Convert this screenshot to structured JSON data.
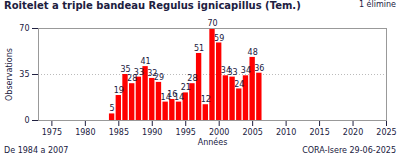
{
  "chart_data": {
    "type": "bar",
    "title": "Roitelet a triple bandeau  Regulus ignicapillus (Tem.)",
    "annotations": [
      "1 élimine"
    ],
    "subtitle": "De 1984 a 2007",
    "caption": "CORA-Isere 29-06-2025",
    "x_label": "Années",
    "y_label": "Observations",
    "x": [
      1984,
      1985,
      1986,
      1987,
      1988,
      1989,
      1990,
      1991,
      1992,
      1993,
      1994,
      1995,
      1996,
      1997,
      1998,
      1999,
      2000,
      2001,
      2002,
      2003,
      2004,
      2005,
      2006
    ],
    "values": [
      5,
      19,
      35,
      28,
      33,
      41,
      32,
      29,
      14,
      16,
      14,
      21,
      28,
      51,
      12,
      70,
      59,
      34,
      33,
      24,
      34,
      48,
      36
    ],
    "color": "#ff0000",
    "xlim": [
      1973,
      2025
    ],
    "xticks": [
      1975,
      1980,
      1985,
      1990,
      1995,
      2000,
      2005,
      2010,
      2015,
      2020,
      2025
    ],
    "ylim": [
      0,
      70
    ],
    "yticks": [
      0,
      35,
      70
    ],
    "grid": true,
    "data_labels": true
  }
}
